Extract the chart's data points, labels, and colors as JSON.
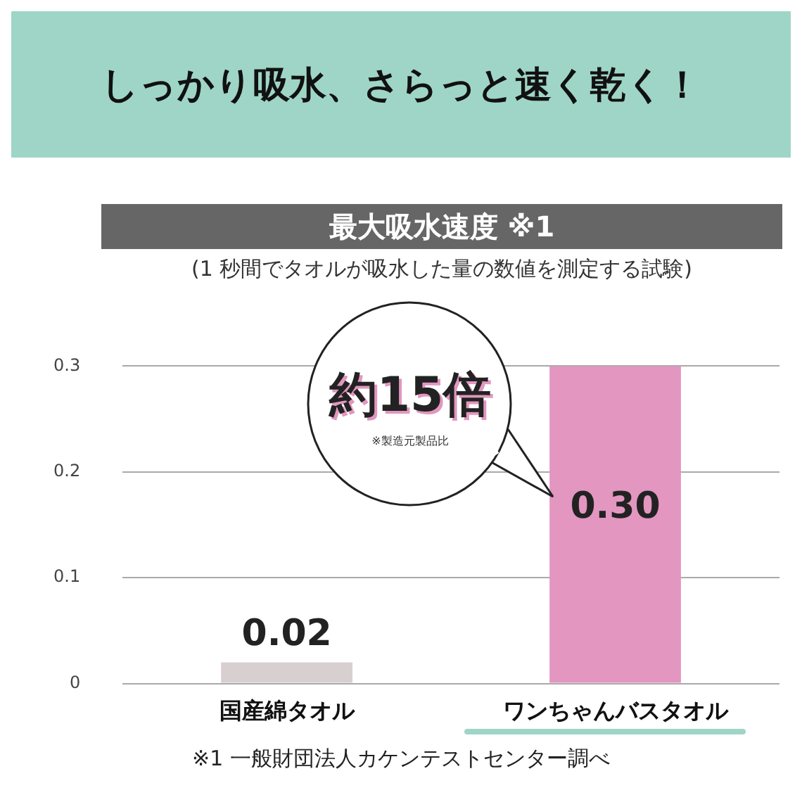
{
  "chart_data": {
    "type": "bar",
    "title": "しっかり吸水、さらっと速く乾く！",
    "subtitle": "最大吸水速度 ※1",
    "categories": [
      "国産綿タオル",
      "ワンちゃんバスタオル"
    ],
    "values": [
      0.02,
      0.3
    ],
    "colors": [
      "#d8cfd1",
      "#e296c0"
    ],
    "value_labels": [
      "0.02",
      "0.30"
    ],
    "ylim": [
      0,
      0.3
    ],
    "yticks": [
      0,
      0.1,
      0.2,
      0.3
    ],
    "grid": "y",
    "legend": false,
    "annotations": [
      "(1 秒間でタオルが吸水した量の数値を測定する試験)",
      "約15倍",
      "※製造元製品比",
      "※1 一般財団法人カケンテストセンター調べ"
    ]
  }
}
